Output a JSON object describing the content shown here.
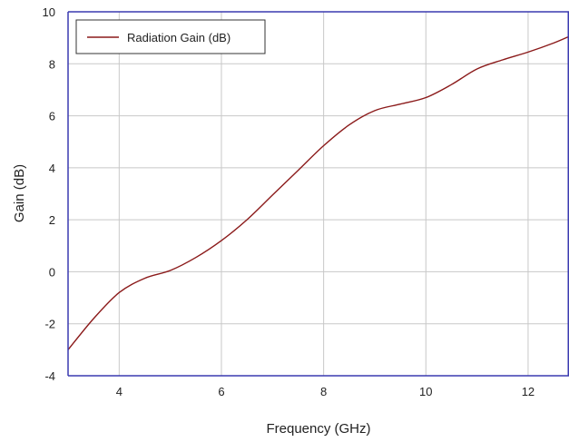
{
  "chart_data": {
    "type": "line",
    "title": "",
    "xlabel": "Frequency (GHz)",
    "ylabel": "Gain (dB)",
    "xlim": [
      3,
      12.8
    ],
    "ylim": [
      -4,
      10
    ],
    "xticks": [
      4,
      6,
      8,
      10,
      12
    ],
    "yticks": [
      -4,
      -2,
      0,
      2,
      4,
      6,
      8,
      10
    ],
    "xtick_labels": [
      "4",
      "6",
      "8",
      "10",
      "12"
    ],
    "ytick_labels": [
      "-4",
      "-2",
      "0",
      "2",
      "4",
      "6",
      "8",
      "10"
    ],
    "grid": true,
    "legend_position": "top-left",
    "series": [
      {
        "name": "Radiation Gain (dB)",
        "color": "#8b1a1a",
        "x": [
          3.0,
          3.5,
          4.0,
          4.5,
          5.0,
          5.5,
          6.0,
          6.5,
          7.0,
          7.5,
          8.0,
          8.5,
          9.0,
          9.5,
          10.0,
          10.5,
          11.0,
          11.5,
          12.0,
          12.5,
          12.8
        ],
        "y": [
          -3.0,
          -1.8,
          -0.8,
          -0.25,
          0.05,
          0.55,
          1.2,
          2.0,
          2.95,
          3.9,
          4.85,
          5.65,
          6.2,
          6.45,
          6.7,
          7.2,
          7.8,
          8.15,
          8.45,
          8.8,
          9.05
        ]
      }
    ]
  },
  "colors": {
    "frame": "#3a3ab0",
    "grid": "#c8c8c8"
  }
}
